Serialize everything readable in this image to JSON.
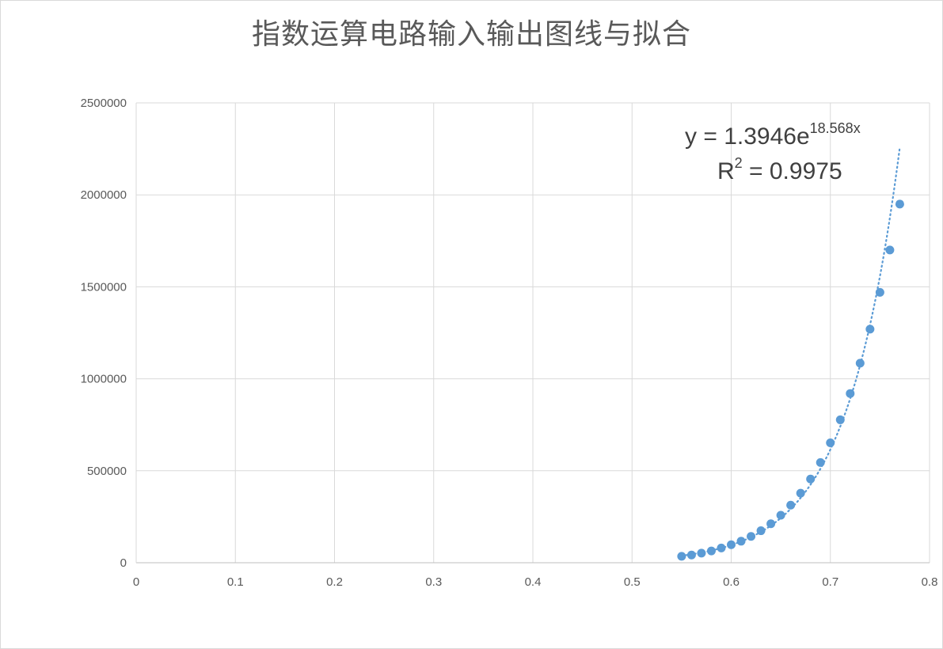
{
  "chart_data": {
    "type": "scatter",
    "title": "指数运算电路输入输出图线与拟合",
    "xlabel": "",
    "ylabel": "",
    "xlim": [
      0,
      0.8
    ],
    "ylim": [
      0,
      2500000
    ],
    "x_ticks": [
      "0",
      "0.1",
      "0.2",
      "0.3",
      "0.4",
      "0.5",
      "0.6",
      "0.7",
      "0.8"
    ],
    "y_ticks": [
      "0",
      "500000",
      "1000000",
      "1500000",
      "2000000",
      "2500000"
    ],
    "grid": true,
    "legend": "none",
    "series": [
      {
        "color": "#5b9bd5",
        "points": [
          [
            0.55,
            35000
          ],
          [
            0.56,
            42000
          ],
          [
            0.57,
            52000
          ],
          [
            0.58,
            64000
          ],
          [
            0.59,
            80000
          ],
          [
            0.6,
            98000
          ],
          [
            0.61,
            117000
          ],
          [
            0.62,
            143000
          ],
          [
            0.63,
            174000
          ],
          [
            0.64,
            212000
          ],
          [
            0.65,
            258000
          ],
          [
            0.66,
            313000
          ],
          [
            0.67,
            378000
          ],
          [
            0.68,
            455000
          ],
          [
            0.69,
            545000
          ],
          [
            0.7,
            652000
          ],
          [
            0.71,
            777000
          ],
          [
            0.72,
            920000
          ],
          [
            0.73,
            1085000
          ],
          [
            0.74,
            1270000
          ],
          [
            0.75,
            1470000
          ],
          [
            0.76,
            1700000
          ],
          [
            0.77,
            1950000
          ]
        ]
      }
    ],
    "trendline": {
      "type": "exponential",
      "a": 1.3946,
      "b": 18.568,
      "x_range": [
        0.55,
        0.77
      ],
      "style": "dotted",
      "color": "#5b9bd5",
      "equation_prefix": "y = 1.3946e",
      "equation_exponent": "18.568x",
      "r2_prefix": "R",
      "r2_superscript": "2",
      "r2_value": " = 0.9975"
    }
  }
}
